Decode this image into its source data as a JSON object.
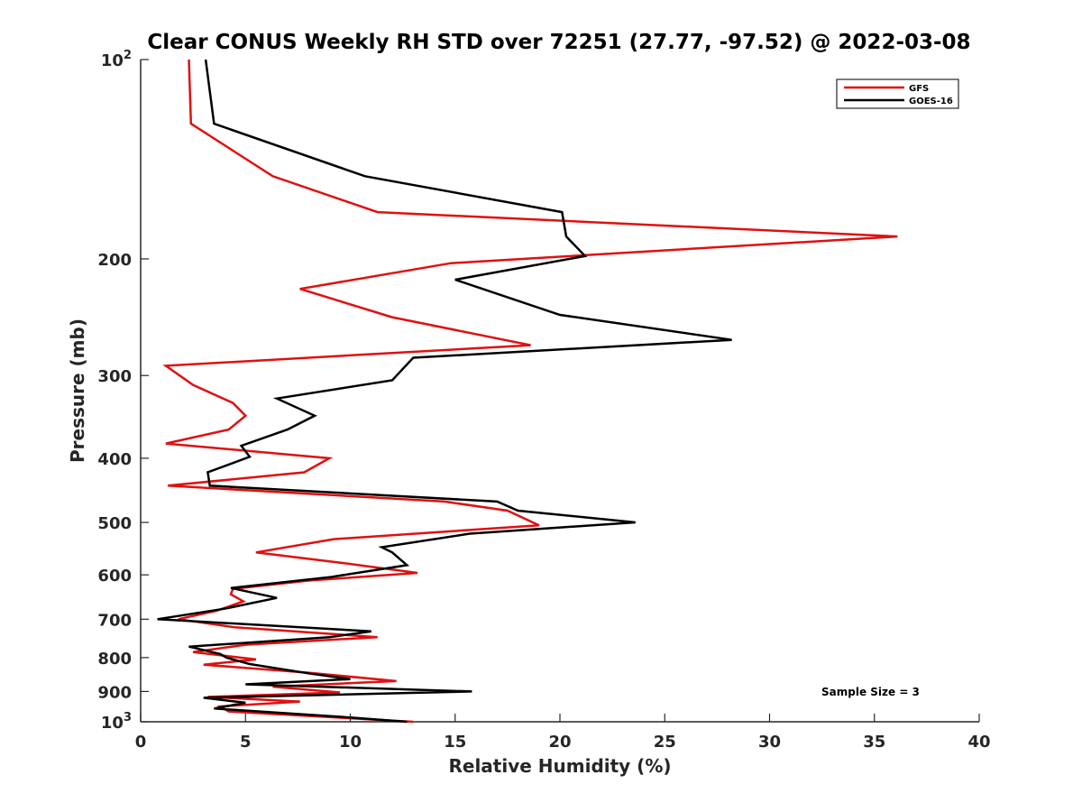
{
  "chart_data": {
    "type": "line",
    "title": "Clear CONUS Weekly RH STD over 72251 (27.77, -97.52) @ 2022-03-08",
    "xlabel": "Relative Humidity (%)",
    "ylabel": "Pressure (mb)",
    "xlim": [
      0,
      40
    ],
    "ylim": [
      100,
      1000
    ],
    "y_scale": "log",
    "y_reversed": true,
    "grid": false,
    "legend_position": "top-right",
    "colors": {
      "GFS": "#e01010",
      "GOES-16": "#000000"
    },
    "x_ticks": [
      "0",
      "5",
      "10",
      "15",
      "20",
      "25",
      "30",
      "35",
      "40"
    ],
    "y_ticks": [
      {
        "value": 100,
        "base": "10",
        "exp": "2"
      },
      {
        "value": 200,
        "label": "200"
      },
      {
        "value": 300,
        "label": "300"
      },
      {
        "value": 400,
        "label": "400"
      },
      {
        "value": 500,
        "label": "500"
      },
      {
        "value": 600,
        "label": "600"
      },
      {
        "value": 700,
        "label": "700"
      },
      {
        "value": 800,
        "label": "800"
      },
      {
        "value": 900,
        "label": "900"
      },
      {
        "value": 1000,
        "base": "10",
        "exp": "3"
      }
    ],
    "annotation": "Sample Size = 3",
    "series": [
      {
        "name": "GFS",
        "color": "#e01010",
        "points": [
          [
            2.3,
            100
          ],
          [
            2.4,
            125
          ],
          [
            6.3,
            150
          ],
          [
            11.3,
            170
          ],
          [
            36.1,
            185
          ],
          [
            14.8,
            203
          ],
          [
            7.6,
            222
          ],
          [
            12.0,
            245
          ],
          [
            18.6,
            270
          ],
          [
            1.2,
            290
          ],
          [
            2.5,
            310
          ],
          [
            4.4,
            330
          ],
          [
            5.0,
            345
          ],
          [
            4.2,
            362
          ],
          [
            1.2,
            380
          ],
          [
            9.0,
            400
          ],
          [
            7.8,
            420
          ],
          [
            1.3,
            440
          ],
          [
            14.5,
            465
          ],
          [
            17.5,
            480
          ],
          [
            19.0,
            505
          ],
          [
            9.2,
            530
          ],
          [
            5.5,
            555
          ],
          [
            9.5,
            575
          ],
          [
            13.2,
            596
          ],
          [
            8.0,
            612
          ],
          [
            4.4,
            630
          ],
          [
            4.3,
            642
          ],
          [
            4.9,
            658
          ],
          [
            3.6,
            680
          ],
          [
            1.8,
            700
          ],
          [
            4.5,
            720
          ],
          [
            11.3,
            745
          ],
          [
            5.0,
            765
          ],
          [
            2.5,
            785
          ],
          [
            5.5,
            805
          ],
          [
            3.0,
            820
          ],
          [
            8.0,
            843
          ],
          [
            12.2,
            868
          ],
          [
            6.3,
            885
          ],
          [
            9.5,
            903
          ],
          [
            3.2,
            917
          ],
          [
            7.6,
            932
          ],
          [
            3.8,
            948
          ],
          [
            4.2,
            965
          ],
          [
            13.0,
            1000
          ]
        ]
      },
      {
        "name": "GOES-16",
        "color": "#000000",
        "points": [
          [
            3.1,
            100
          ],
          [
            3.5,
            125
          ],
          [
            10.7,
            150
          ],
          [
            20.1,
            170
          ],
          [
            20.3,
            185
          ],
          [
            21.2,
            198
          ],
          [
            15.0,
            215
          ],
          [
            20.0,
            243
          ],
          [
            28.2,
            265
          ],
          [
            13.0,
            282
          ],
          [
            12.0,
            305
          ],
          [
            6.5,
            325
          ],
          [
            8.3,
            345
          ],
          [
            7.0,
            362
          ],
          [
            4.8,
            383
          ],
          [
            5.2,
            398
          ],
          [
            3.2,
            420
          ],
          [
            3.3,
            440
          ],
          [
            17.0,
            465
          ],
          [
            18.0,
            480
          ],
          [
            23.6,
            500
          ],
          [
            15.7,
            520
          ],
          [
            11.5,
            545
          ],
          [
            12.0,
            555
          ],
          [
            12.7,
            580
          ],
          [
            9.0,
            605
          ],
          [
            4.3,
            628
          ],
          [
            6.5,
            650
          ],
          [
            4.0,
            675
          ],
          [
            0.8,
            700
          ],
          [
            11.0,
            730
          ],
          [
            9.0,
            745
          ],
          [
            2.3,
            770
          ],
          [
            3.8,
            790
          ],
          [
            4.1,
            800
          ],
          [
            5.2,
            818
          ],
          [
            8.0,
            845
          ],
          [
            10.0,
            862
          ],
          [
            5.0,
            878
          ],
          [
            15.8,
            900
          ],
          [
            3.0,
            920
          ],
          [
            5.0,
            936
          ],
          [
            3.5,
            955
          ],
          [
            10.0,
            985
          ],
          [
            12.7,
            1000
          ]
        ]
      }
    ]
  }
}
